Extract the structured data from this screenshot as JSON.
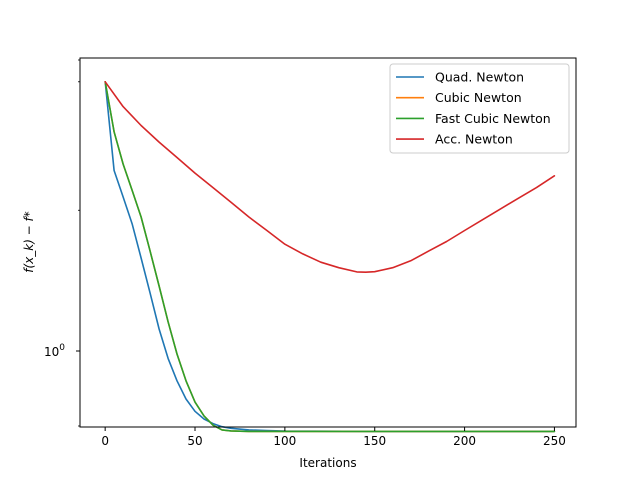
{
  "chart_data": {
    "type": "line",
    "title": "",
    "xlabel": "Iterations",
    "ylabel": "f(x_k) − f*",
    "yscale": "log",
    "xlim": [
      -14,
      262
    ],
    "x_ticks": [
      0,
      50,
      100,
      150,
      200,
      250
    ],
    "y_major_tick": {
      "value": 1,
      "base": "10",
      "exponent": "0"
    },
    "legend_position": "top-right",
    "grid": false,
    "series": [
      {
        "name": "Quad. Newton",
        "color": "#1f77b4",
        "x": [
          0,
          5,
          10,
          15,
          20,
          25,
          30,
          35,
          40,
          45,
          50,
          55,
          60,
          65,
          70,
          80,
          90,
          100,
          150,
          200,
          250
        ],
        "y": [
          1.2,
          1.13,
          1.11,
          1.09,
          1.065,
          1.04,
          1.015,
          0.995,
          0.98,
          0.968,
          0.96,
          0.955,
          0.952,
          0.95,
          0.949,
          0.948,
          0.9475,
          0.9472,
          0.947,
          0.947,
          0.947
        ]
      },
      {
        "name": "Cubic Newton",
        "color": "#ff7f0e",
        "x": [
          0,
          5,
          10,
          15,
          20,
          25,
          30,
          35,
          40,
          45,
          50,
          55,
          60,
          65,
          70,
          80,
          90,
          100,
          150,
          200,
          250
        ],
        "y": [
          1.2,
          1.16,
          1.135,
          1.115,
          1.095,
          1.07,
          1.045,
          1.02,
          0.998,
          0.98,
          0.966,
          0.957,
          0.951,
          0.948,
          0.9473,
          0.947,
          0.947,
          0.947,
          0.947,
          0.947,
          0.947
        ]
      },
      {
        "name": "Fast Cubic Newton",
        "color": "#2ca02c",
        "x": [
          0,
          5,
          10,
          15,
          20,
          25,
          30,
          35,
          40,
          45,
          50,
          55,
          60,
          65,
          70,
          80,
          90,
          100,
          150,
          200,
          250
        ],
        "y": [
          1.2,
          1.16,
          1.135,
          1.115,
          1.095,
          1.07,
          1.045,
          1.02,
          0.998,
          0.98,
          0.966,
          0.957,
          0.951,
          0.948,
          0.9473,
          0.947,
          0.947,
          0.947,
          0.947,
          0.947,
          0.947
        ]
      },
      {
        "name": "Acc. Newton",
        "color": "#d62728",
        "x": [
          0,
          10,
          20,
          30,
          40,
          50,
          60,
          70,
          80,
          90,
          100,
          110,
          120,
          130,
          140,
          145,
          150,
          160,
          170,
          180,
          190,
          200,
          210,
          220,
          230,
          240,
          250
        ],
        "y": [
          1.2,
          1.18,
          1.165,
          1.152,
          1.14,
          1.128,
          1.117,
          1.106,
          1.095,
          1.085,
          1.075,
          1.068,
          1.062,
          1.058,
          1.055,
          1.0548,
          1.0552,
          1.058,
          1.063,
          1.07,
          1.077,
          1.085,
          1.093,
          1.101,
          1.109,
          1.117,
          1.126
        ]
      }
    ]
  }
}
